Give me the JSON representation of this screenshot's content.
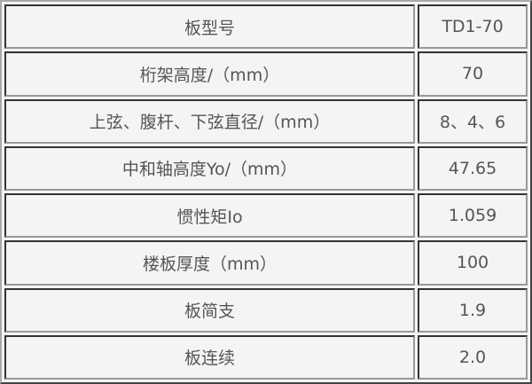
{
  "rows": [
    {
      "label": "板型号",
      "value": "TD1-70"
    },
    {
      "label": "桁架高度/（mm）",
      "value": "70"
    },
    {
      "label": "上弦、腹杆、下弦直径/（mm）",
      "value": "8、4、6"
    },
    {
      "label": "中和轴高度Yo/（mm）",
      "value": "47.65"
    },
    {
      "label": "惯性矩Io",
      "value": "1.059"
    },
    {
      "label": "楼板厚度（mm）",
      "value": "100"
    },
    {
      "label": "板简支",
      "value": "1.9"
    },
    {
      "label": "板连续",
      "value": "2.0"
    }
  ]
}
